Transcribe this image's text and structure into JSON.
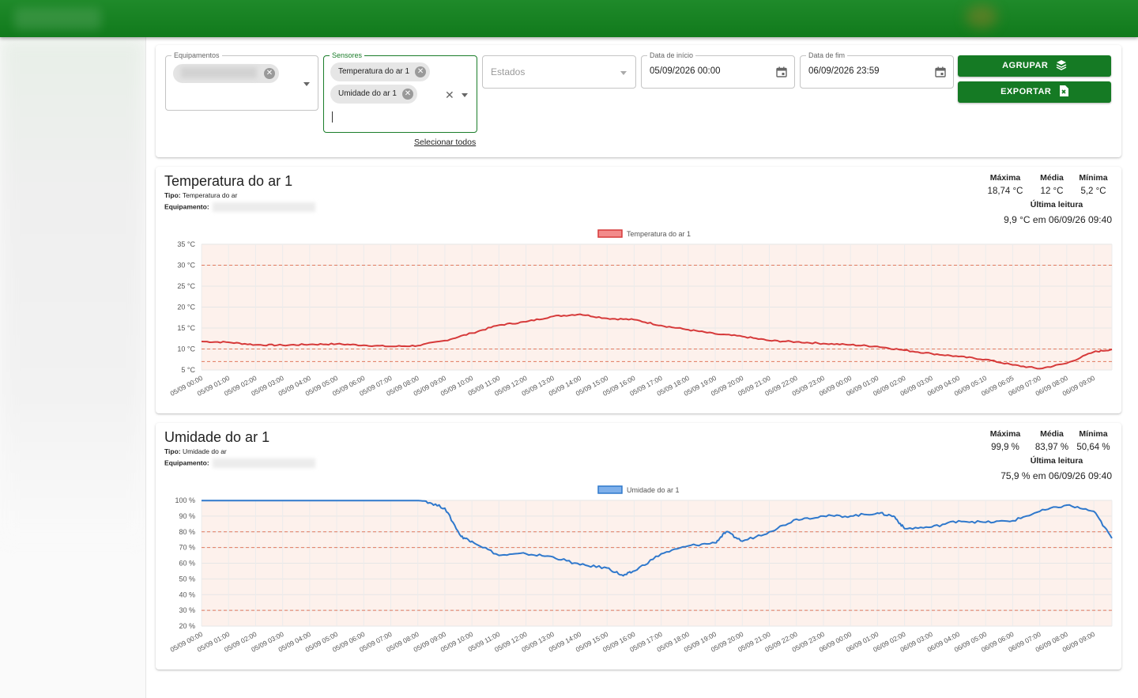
{
  "filters": {
    "equipamentos": {
      "label": "Equipamentos"
    },
    "sensores": {
      "label": "Sensores",
      "chips": [
        "Temperatura do ar 1",
        "Umidade do ar 1"
      ],
      "select_all": "Selecionar todos"
    },
    "estados": {
      "placeholder": "Estados"
    },
    "data_inicio": {
      "label": "Data de início",
      "value": "05/09/2026 00:00"
    },
    "data_fim": {
      "label": "Data de fim",
      "value": "06/09/2026 23:59"
    }
  },
  "actions": {
    "agrupar": {
      "label": "AGRUPAR",
      "icon": "layers-icon"
    },
    "exportar": {
      "label": "EXPORTAR",
      "icon": "file-export-icon"
    }
  },
  "colors": {
    "brand_green": "#157a24",
    "temp_line": "#d63a3a",
    "hum_line": "#2f78cc",
    "band_fill": "#fdf1ec",
    "limit_line": "#e07a5f"
  },
  "charts": [
    {
      "title": "Temperatura do ar 1",
      "tipo_label": "Tipo:",
      "tipo": "Temperatura do ar",
      "equipamento_label": "Equipamento:",
      "stats": {
        "max_label": "Máxima",
        "max": "18,74 °C",
        "avg_label": "Média",
        "avg": "12 °C",
        "min_label": "Mínima",
        "min": "5,2 °C"
      },
      "last_label": "Última leitura",
      "last_value": "9,9 °C em 06/09/26 09:40"
    },
    {
      "title": "Umidade do ar 1",
      "tipo_label": "Tipo:",
      "tipo": "Umidade do ar",
      "equipamento_label": "Equipamento:",
      "stats": {
        "max_label": "Máxima",
        "max": "99,9 %",
        "avg_label": "Média",
        "avg": "83,97 %",
        "min_label": "Mínima",
        "min": "50,64 %"
      },
      "last_label": "Última leitura",
      "last_value": "75,9 % em 06/09/26 09:40"
    }
  ],
  "chart_data": [
    {
      "type": "line",
      "legend": "Temperatura do ar 1",
      "unit": "°C",
      "y_ticks": [
        "35 °C",
        "30 °C",
        "25 °C",
        "20 °C",
        "15 °C",
        "10 °C",
        "5 °C"
      ],
      "ylim": [
        5,
        35
      ],
      "band": [
        5,
        35
      ],
      "limits": [
        30,
        10,
        7
      ],
      "x_labels": [
        "05/09 00:00",
        "05/09 01:00",
        "05/09 02:00",
        "05/09 03:00",
        "05/09 04:00",
        "05/09 05:00",
        "05/09 06:00",
        "05/09 07:00",
        "05/09 08:00",
        "05/09 09:00",
        "05/09 10:00",
        "05/09 11:00",
        "05/09 12:00",
        "05/09 13:00",
        "05/09 14:00",
        "05/09 15:00",
        "05/09 16:00",
        "05/09 17:00",
        "05/09 18:00",
        "05/09 19:00",
        "05/09 20:00",
        "05/09 21:00",
        "05/09 22:00",
        "05/09 23:00",
        "06/09 00:00",
        "06/09 01:00",
        "06/09 02:00",
        "06/09 03:00",
        "06/09 04:00",
        "06/09 05:10",
        "06/09 06:05",
        "06/09 07:00",
        "06/09 08:00",
        "06/09 09:00"
      ],
      "x": [
        0,
        1,
        2,
        3,
        4,
        5,
        6,
        7,
        8,
        9,
        10,
        11,
        12,
        13,
        14,
        15,
        16,
        17,
        18,
        19,
        20,
        21,
        22,
        23,
        24,
        25,
        26,
        27,
        28,
        29,
        30,
        31,
        32,
        33,
        33.67
      ],
      "values": [
        11.8,
        11.6,
        11.0,
        10.9,
        11.1,
        11.2,
        10.9,
        10.6,
        10.8,
        12.0,
        13.8,
        15.7,
        16.5,
        17.8,
        18.3,
        17.3,
        17.0,
        15.6,
        14.6,
        13.6,
        13.0,
        12.0,
        11.7,
        11.3,
        11.0,
        10.6,
        9.7,
        8.9,
        8.2,
        7.5,
        6.2,
        5.3,
        6.6,
        9.3,
        9.9
      ]
    },
    {
      "type": "line",
      "legend": "Umidade do ar 1",
      "unit": "%",
      "y_ticks": [
        "100 %",
        "90 %",
        "80 %",
        "70 %",
        "60 %",
        "50 %",
        "40 %",
        "30 %",
        "20 %"
      ],
      "ylim": [
        20,
        100
      ],
      "band": [
        20,
        100
      ],
      "limits": [
        80,
        70,
        30
      ],
      "x_labels": [
        "05/09 00:00",
        "05/09 01:00",
        "05/09 02:00",
        "05/09 03:00",
        "05/09 04:00",
        "05/09 05:00",
        "05/09 06:00",
        "05/09 07:00",
        "05/09 08:00",
        "05/09 09:00",
        "05/09 10:00",
        "05/09 11:00",
        "05/09 12:00",
        "05/09 13:00",
        "05/09 14:00",
        "05/09 15:00",
        "05/09 16:00",
        "05/09 17:00",
        "05/09 18:00",
        "05/09 19:00",
        "05/09 20:00",
        "05/09 21:00",
        "05/09 22:00",
        "05/09 23:00",
        "06/09 00:00",
        "06/09 01:00",
        "06/09 02:00",
        "06/09 03:00",
        "06/09 04:00",
        "06/09 05:00",
        "06/09 06:00",
        "06/09 07:00",
        "06/09 08:00",
        "06/09 09:00"
      ],
      "x": [
        0,
        1,
        2,
        3,
        4,
        5,
        6,
        7,
        8,
        8.3,
        9,
        9.6,
        10,
        11,
        12,
        13,
        14,
        15,
        15.6,
        16,
        17,
        18,
        19,
        19.4,
        20,
        21,
        22,
        23,
        24,
        25,
        25.6,
        26,
        27,
        28,
        29,
        30,
        31,
        32,
        33,
        33.67
      ],
      "values": [
        99.9,
        99.9,
        99.9,
        99.9,
        99.9,
        99.9,
        99.9,
        99.9,
        99.9,
        99.5,
        95,
        77,
        74,
        65,
        66,
        64,
        59,
        57,
        52,
        55,
        66,
        71,
        73,
        80,
        74,
        80,
        88,
        90,
        90,
        92,
        90,
        82,
        83,
        87,
        86,
        87,
        93,
        97,
        93,
        75.9
      ]
    }
  ]
}
